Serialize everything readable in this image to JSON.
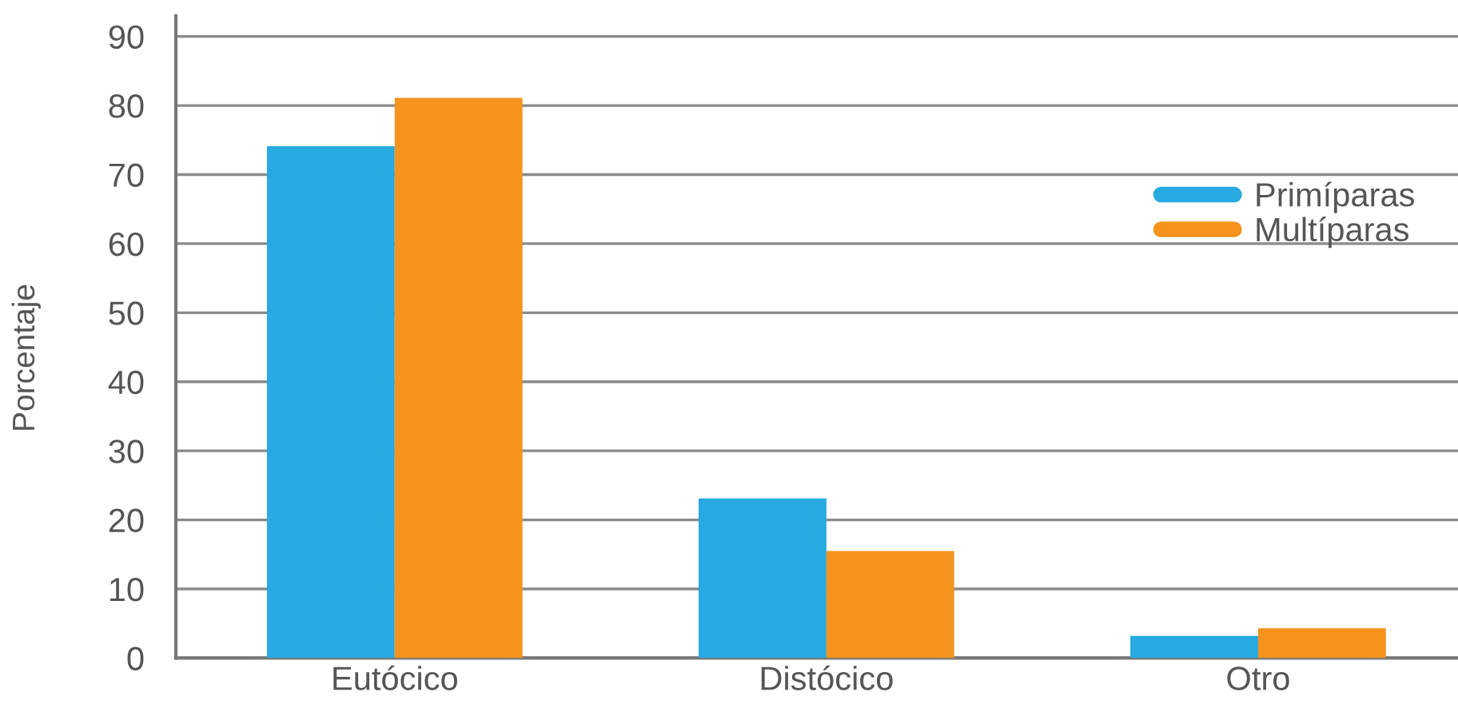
{
  "chart_data": {
    "type": "bar",
    "ylabel": "Porcentaje",
    "categories": [
      "Eutócico",
      "Distócico",
      "Otro"
    ],
    "series": [
      {
        "name": "Primíparas",
        "color": "#27a9e1",
        "values": [
          74.1,
          23.1,
          3.2
        ]
      },
      {
        "name": "Multíparas",
        "color": "#f5931e",
        "values": [
          81.1,
          15.5,
          4.3
        ]
      }
    ],
    "ylim": [
      0,
      93
    ],
    "yticks": [
      0,
      10,
      20,
      30,
      40,
      50,
      60,
      70,
      80,
      90
    ],
    "grid": "y",
    "legend": "right"
  }
}
